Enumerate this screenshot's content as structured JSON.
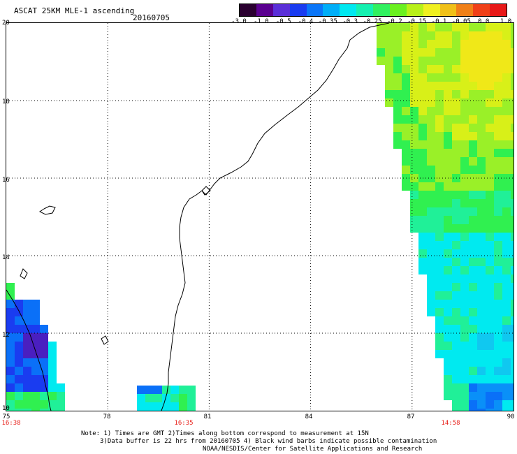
{
  "header": {
    "title": "ASCAT 25KM MLE-1 ascending",
    "date": "20160705"
  },
  "colorbar": {
    "tick_labels": [
      "-3.0",
      "-1.0",
      "-0.5",
      "-0.4",
      "-0.35",
      "-0.3",
      "-0.25",
      "-0.2",
      "-0.15",
      "-0.1",
      "-0.05",
      "0.0",
      "1.0"
    ],
    "colors": [
      "#2a0030",
      "#5a0090",
      "#5a2fd8",
      "#1a3cf0",
      "#0b76f8",
      "#00aef8",
      "#00e8f0",
      "#14f0b0",
      "#30f060",
      "#6af020",
      "#b8f018",
      "#f0f020",
      "#f0c018",
      "#f08018",
      "#f04018",
      "#e81818"
    ]
  },
  "map": {
    "lat_labels": [
      "20",
      "18",
      "16",
      "14",
      "12",
      "10"
    ],
    "lon_labels": [
      "75",
      "78",
      "81",
      "84",
      "87",
      "90"
    ],
    "time_labels": [
      "16:38",
      "16:35",
      "14:58"
    ],
    "lon_range": [
      75,
      90
    ],
    "lat_range": [
      10,
      20
    ],
    "colors": {
      "dark_violet": "#4a1fc0",
      "deep_blue": "#1a3cf0",
      "blue": "#0a70f8",
      "cyan": "#00eaf0",
      "aqua_green": "#20f098",
      "green": "#30f050",
      "light_green": "#9af028",
      "yellow_green": "#d8f018",
      "yellow": "#f0e818"
    }
  },
  "notes": {
    "line1": "Note: 1) Times are GMT 2)Times along bottom correspond to measurement at 15N",
    "line2": "3)Data buffer is 22 hrs from 20160705 4) Black wind barbs indicate possible contamination",
    "line3": "NOAA/NESDIS/Center for Satellite Applications and Research"
  }
}
